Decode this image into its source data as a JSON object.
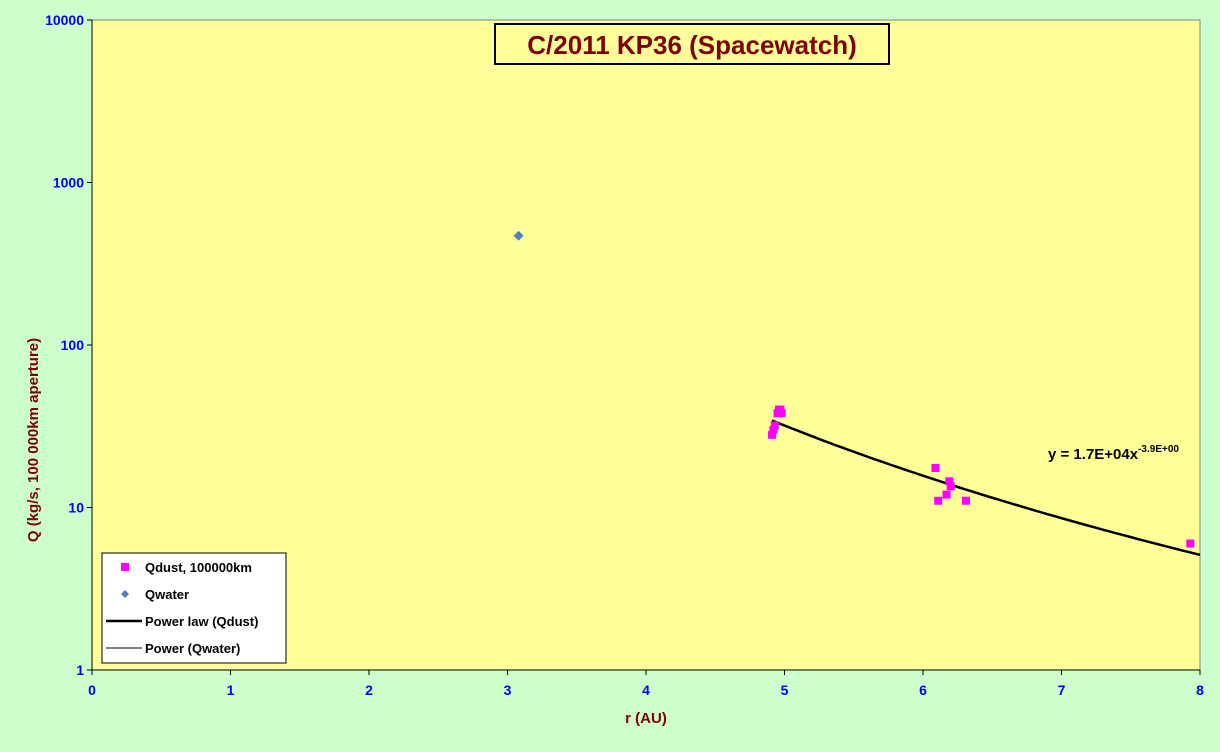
{
  "chart_data": {
    "type": "scatter",
    "title": "C/2011 KP36 (Spacewatch)",
    "xlabel": "r (AU)",
    "ylabel": "Q (kg/s, 100 000km aperture)",
    "xlim": [
      0,
      8
    ],
    "ylim": [
      1,
      10000
    ],
    "y_scale": "log",
    "x_ticks": [
      "0",
      "1",
      "2",
      "3",
      "4",
      "5",
      "6",
      "7",
      "8"
    ],
    "y_ticks": [
      "1",
      "10",
      "100",
      "1000",
      "10000"
    ],
    "grid": false,
    "legend_position": "bottom-left",
    "series": [
      {
        "name": "Qdust, 100000km",
        "marker": "square",
        "color": "#ff00ff",
        "points": [
          {
            "x": 4.91,
            "y": 28
          },
          {
            "x": 4.92,
            "y": 30
          },
          {
            "x": 4.93,
            "y": 32
          },
          {
            "x": 4.95,
            "y": 38
          },
          {
            "x": 4.96,
            "y": 40
          },
          {
            "x": 4.97,
            "y": 40
          },
          {
            "x": 4.98,
            "y": 38
          },
          {
            "x": 6.09,
            "y": 17.5
          },
          {
            "x": 6.11,
            "y": 11
          },
          {
            "x": 6.17,
            "y": 12
          },
          {
            "x": 6.19,
            "y": 14.5
          },
          {
            "x": 6.2,
            "y": 13.5
          },
          {
            "x": 6.31,
            "y": 11
          },
          {
            "x": 7.93,
            "y": 6
          }
        ]
      },
      {
        "name": "Qwater",
        "marker": "diamond",
        "color": "#4f81bd",
        "points": [
          {
            "x": 3.08,
            "y": 470
          }
        ]
      }
    ],
    "trendlines": [
      {
        "name": "Power law (Qdust)",
        "color": "#000000",
        "coefficient": 17000,
        "exponent": -3.9,
        "x_range": [
          4.91,
          8.0
        ],
        "equation_main": "y = 1.7E+04x",
        "equation_exp": "-3.9E+00"
      },
      {
        "name": "Power (Qwater)",
        "color": "#000000"
      }
    ]
  }
}
